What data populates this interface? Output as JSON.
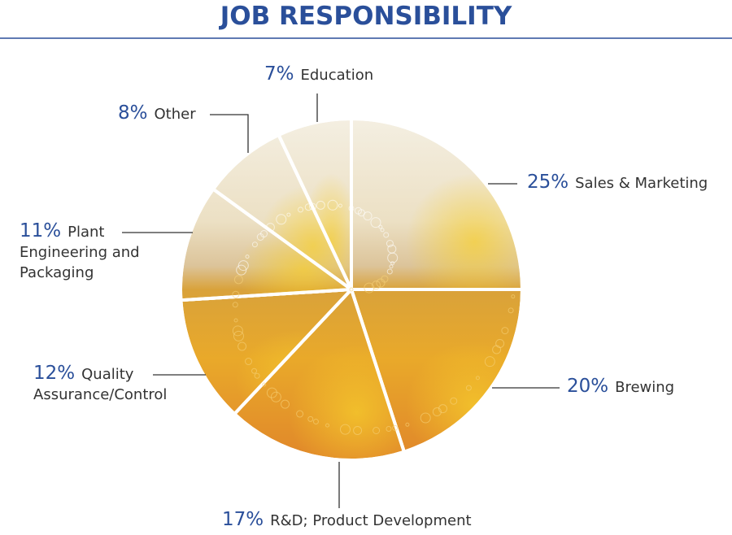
{
  "chart_data": {
    "type": "pie",
    "title": "JOB RESPONSIBILITY",
    "categories": [
      "Sales & Marketing",
      "Brewing",
      "R&D; Product Development",
      "Quality Assurance/Control",
      "Plant Engineering and Packaging",
      "Other",
      "Education"
    ],
    "values": [
      25,
      20,
      17,
      12,
      11,
      8,
      7
    ],
    "value_labels": [
      "25%",
      "20%",
      "17%",
      "12%",
      "11%",
      "8%",
      "7%"
    ]
  }
}
